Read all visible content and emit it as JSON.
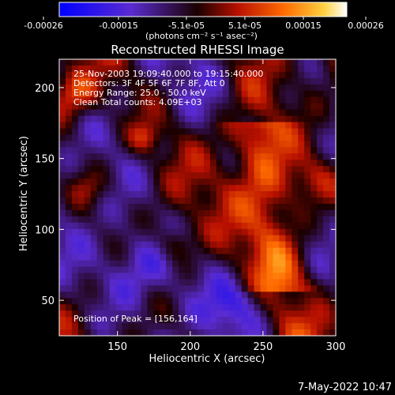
{
  "chart_data": {
    "type": "heatmap",
    "title": "Reconstructed RHESSI Image",
    "xlabel": "Heliocentric X (arcsec)",
    "ylabel": "Heliocentric Y (arcsec)",
    "xlim": [
      110,
      300
    ],
    "ylim": [
      25,
      220
    ],
    "x_ticks": [
      150,
      200,
      250,
      300
    ],
    "y_ticks": [
      50,
      100,
      150,
      200
    ],
    "colorbar": {
      "ticks": [
        "-0.00026",
        "-0.00015",
        "-5.1e-05",
        "5.1e-05",
        "0.00015",
        "0.00026"
      ],
      "unit_label": "(photons cm⁻² s⁻¹ asec⁻²)",
      "range": [
        -0.00026,
        0.00026
      ],
      "colors": [
        "#0000ff",
        "#5a2bd0",
        "#1a0000",
        "#b81000",
        "#ff6a00",
        "#ffd040",
        "#ffffff"
      ]
    },
    "info_lines": [
      "25-Nov-2003 19:09:40.000 to 19:15:40.000",
      "Detectors: 3F 4F 5F 6F 7F 8F, Att 0",
      "Energy Range: 25.0 - 50.0 keV",
      "Clean     Total counts: 4.09E+03"
    ],
    "peak_label": "Position of Peak = [156,164]",
    "peak": {
      "x": 156,
      "y": 164
    },
    "timestamp": "7-May-2022 10:47"
  }
}
